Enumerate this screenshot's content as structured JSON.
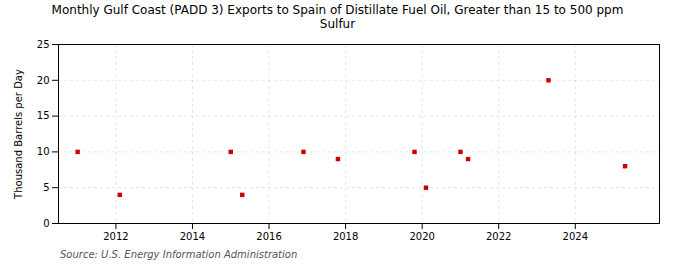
{
  "chart_data": {
    "type": "scatter",
    "title": "Monthly Gulf Coast (PADD 3) Exports to Spain of Distillate Fuel Oil, Greater than 15 to 500 ppm\nSulfur",
    "ylabel": "Thousand Barrels per Day",
    "source": "Source: U.S. Energy Information Administration",
    "x": [
      2011.0,
      2012.1,
      2015.0,
      2015.3,
      2016.9,
      2017.8,
      2019.8,
      2020.1,
      2021.0,
      2021.2,
      2023.3,
      2025.3
    ],
    "values": [
      10.0,
      4.0,
      10.0,
      4.0,
      10.0,
      9.0,
      10.0,
      5.0,
      10.0,
      9.0,
      20.0,
      8.0
    ],
    "color": "#cc0000",
    "marker": "square",
    "xlim": [
      2010.5,
      2026.2
    ],
    "ylim": [
      0,
      25
    ],
    "xticks": [
      2012,
      2014,
      2016,
      2018,
      2020,
      2022,
      2024
    ],
    "yticks": [
      0,
      5,
      10,
      15,
      20,
      25
    ],
    "grid": true
  }
}
